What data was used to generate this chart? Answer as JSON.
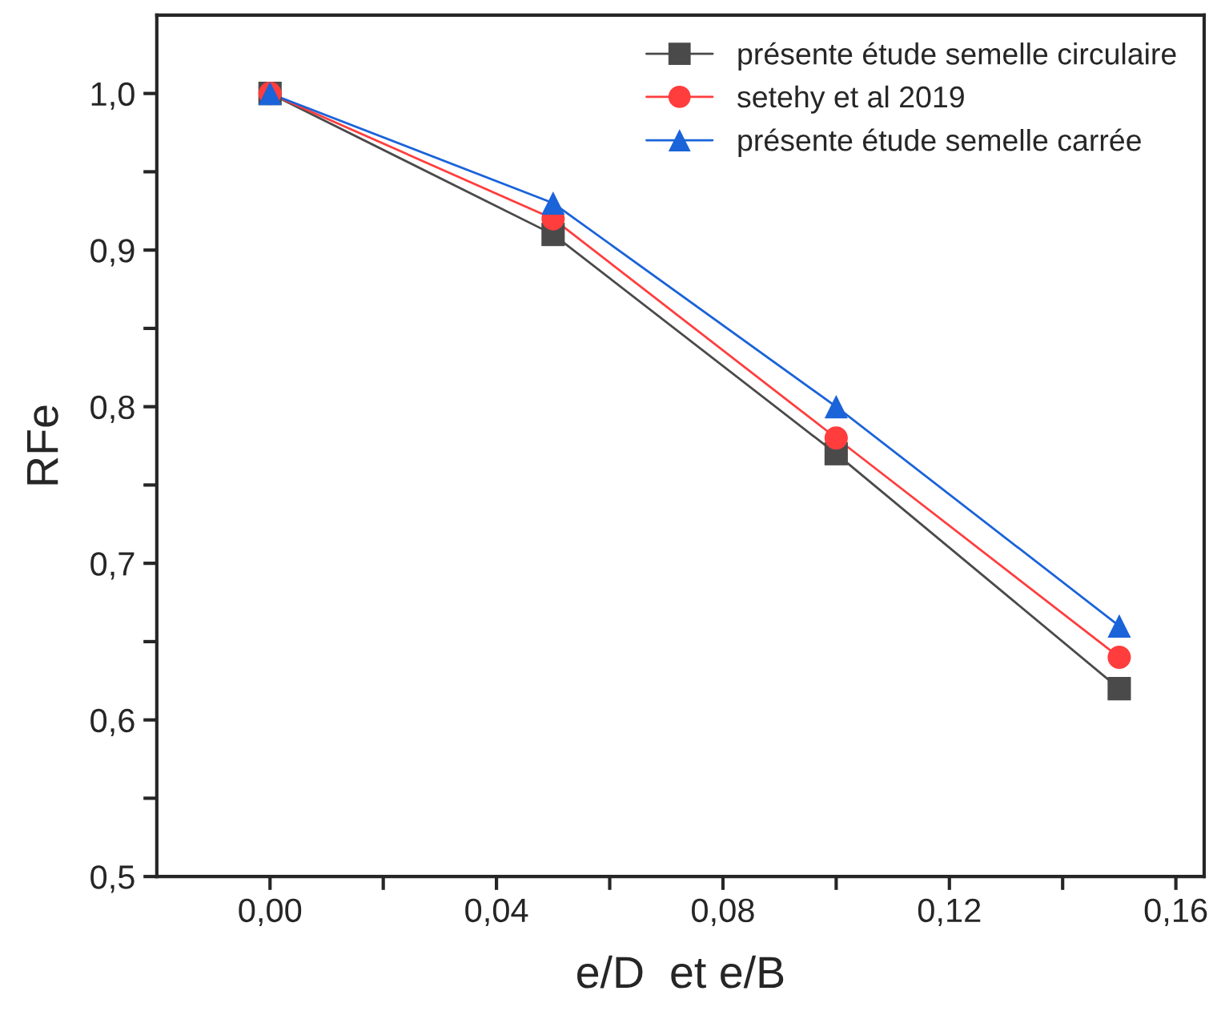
{
  "chart_data": {
    "type": "line",
    "xlabel": "e/D  et e/B",
    "ylabel": "RFe",
    "x": [
      0,
      0.05,
      0.1,
      0.15
    ],
    "series": [
      {
        "name": "présente étude semelle circulaire",
        "color": "#4a4a4a",
        "marker": "square",
        "values": [
          1.0,
          0.91,
          0.77,
          0.62
        ]
      },
      {
        "name": "setehy et al 2019",
        "color": "#ff3d3d",
        "marker": "circle",
        "values": [
          1.0,
          0.92,
          0.78,
          0.64
        ]
      },
      {
        "name": "présente étude semelle carrée",
        "color": "#1a63d9",
        "marker": "triangle",
        "values": [
          1.0,
          0.93,
          0.8,
          0.66
        ]
      }
    ],
    "xlim": [
      -0.02,
      0.165
    ],
    "ylim": [
      0.5,
      1.05
    ],
    "xticks": [
      {
        "value": 0,
        "label": "0,00"
      },
      {
        "value": 0.02,
        "label": null
      },
      {
        "value": 0.04,
        "label": "0,04"
      },
      {
        "value": 0.06,
        "label": null
      },
      {
        "value": 0.08,
        "label": "0,08"
      },
      {
        "value": 0.1,
        "label": null
      },
      {
        "value": 0.12,
        "label": "0,12"
      },
      {
        "value": 0.14,
        "label": null
      },
      {
        "value": 0.16,
        "label": "0,16"
      }
    ],
    "yticks": [
      {
        "value": 0.5,
        "label": "0,5"
      },
      {
        "value": 0.55,
        "label": null
      },
      {
        "value": 0.6,
        "label": "0,6"
      },
      {
        "value": 0.65,
        "label": null
      },
      {
        "value": 0.7,
        "label": "0,7"
      },
      {
        "value": 0.75,
        "label": null
      },
      {
        "value": 0.8,
        "label": "0,8"
      },
      {
        "value": 0.85,
        "label": null
      },
      {
        "value": 0.9,
        "label": "0,9"
      },
      {
        "value": 0.95,
        "label": null
      },
      {
        "value": 1.0,
        "label": "1,0"
      }
    ],
    "grid": false,
    "legend": "top right",
    "line_style": "solid"
  }
}
